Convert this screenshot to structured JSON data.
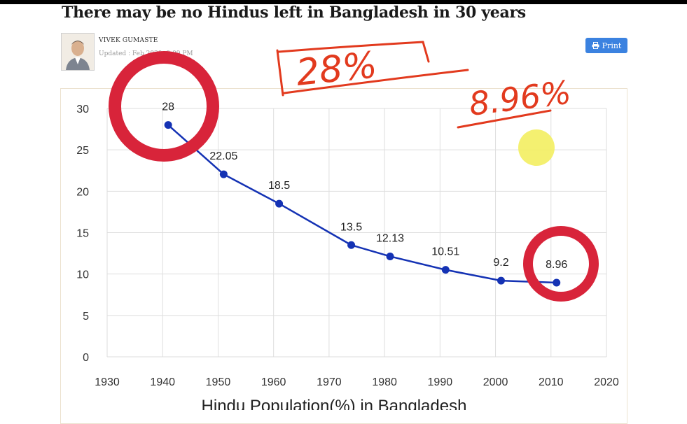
{
  "article": {
    "headline": "There may be no Hindus left in Bangladesh in 30 years",
    "author": "VIVEK GUMASTE",
    "updated": "Updated : Feb        2020, 8:09 PM",
    "print_label": "Print"
  },
  "colors": {
    "series": "#1432b4",
    "circle": "#d8243a",
    "ink": "#e23a1e",
    "highlight": "#f3ee60",
    "grid": "#dedede"
  },
  "chart_data": {
    "type": "line",
    "title": "Hindu Population(%) in Bangladesh",
    "xlim": [
      1930,
      2020
    ],
    "ylim": [
      0,
      30
    ],
    "xticks": [
      1930,
      1940,
      1950,
      1960,
      1970,
      1980,
      1990,
      2000,
      2010,
      2020
    ],
    "yticks": [
      0,
      5,
      10,
      15,
      20,
      25,
      30
    ],
    "grid": true,
    "series": [
      {
        "x": [
          1941,
          1951,
          1961,
          1974,
          1981,
          1991,
          2001,
          2011
        ],
        "y": [
          28,
          22.05,
          18.5,
          13.5,
          12.13,
          10.51,
          9.2,
          8.96
        ],
        "labels": [
          "28",
          "22.05",
          "18.5",
          "13.5",
          "12.13",
          "10.51",
          "9.2",
          "8.96"
        ]
      }
    ]
  },
  "handwriting": {
    "note1": "28%",
    "note2": "8.96%"
  }
}
